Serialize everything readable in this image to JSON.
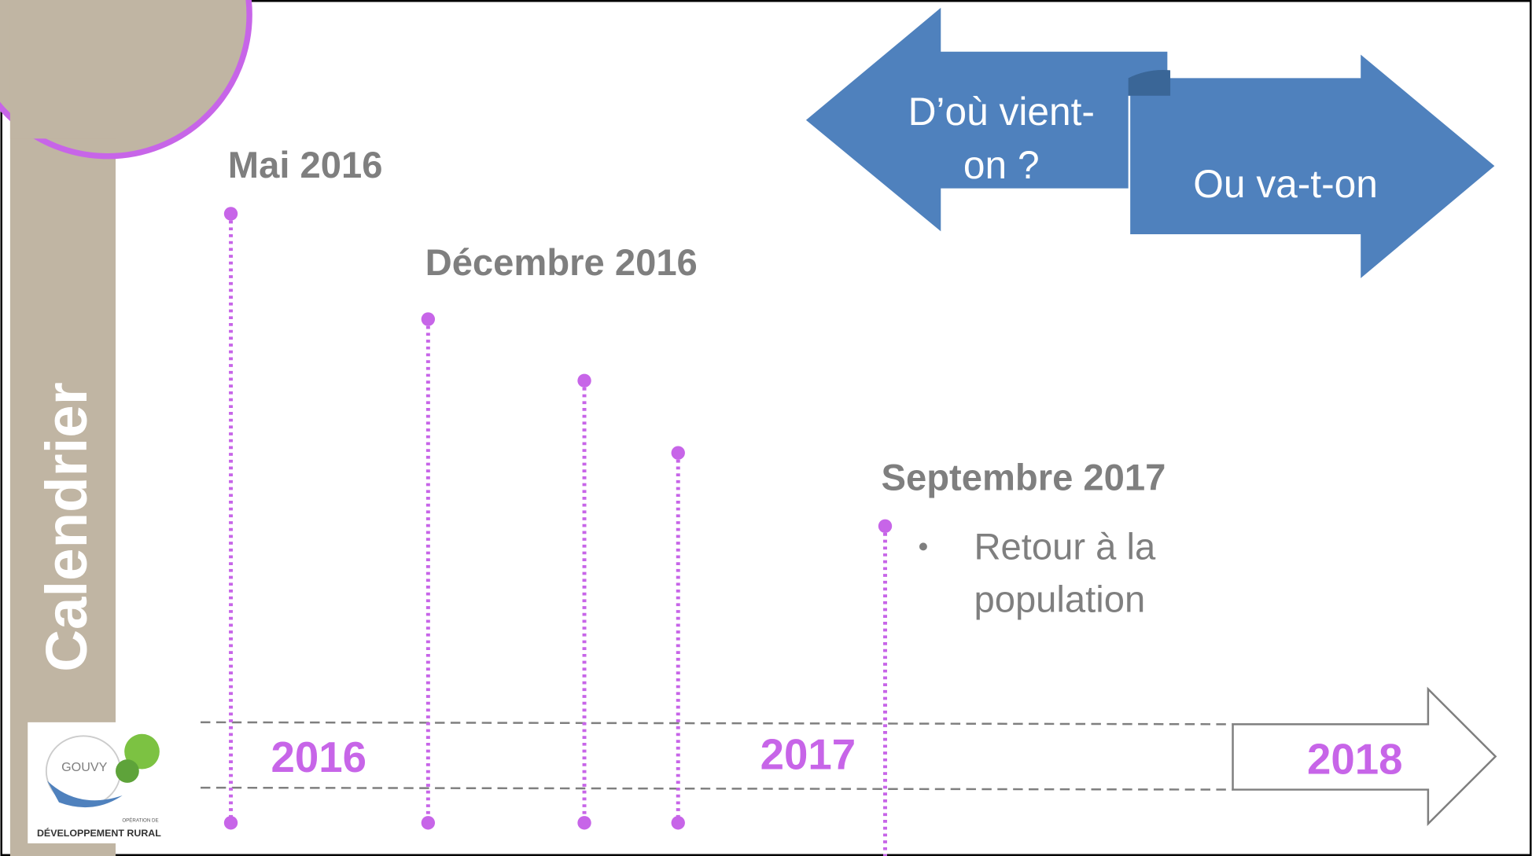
{
  "side_title": "Calendrier",
  "arrows": {
    "back": [
      "D’où vient-",
      "on ?"
    ],
    "forward": "Ou va-t-on"
  },
  "milestones": [
    {
      "label": "Mai 2016"
    },
    {
      "label": "Décembre 2016"
    },
    {
      "label": "Septembre 2017",
      "bullet": [
        "Retour à la",
        "population"
      ]
    }
  ],
  "years": [
    "2016",
    "2017",
    "2018"
  ],
  "logo": {
    "name": "GOUVY",
    "small": "OPÉRATION DE",
    "subtitle": "DÉVELOPPEMENT RURAL"
  }
}
